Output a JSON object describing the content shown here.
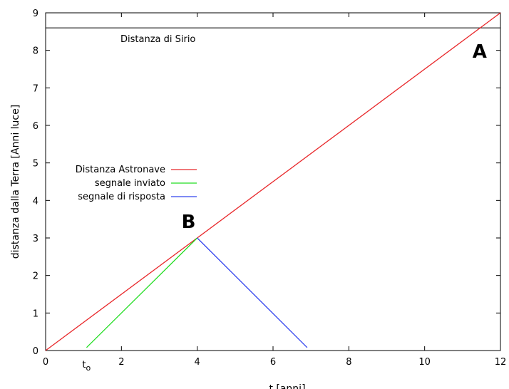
{
  "chart_data": {
    "type": "line",
    "xlabel": "t [anni]",
    "ylabel": "distanza dalla Terra [Anni luce]",
    "xlim": [
      0,
      12
    ],
    "ylim": [
      0,
      9
    ],
    "xticks": [
      0,
      2,
      4,
      6,
      8,
      10,
      12
    ],
    "yticks": [
      0,
      1,
      2,
      3,
      4,
      5,
      6,
      7,
      8,
      9
    ],
    "grid": false,
    "legend_position": "center-left",
    "series": [
      {
        "name": "Distanza Astronave",
        "color": "#e8272a",
        "x": [
          0,
          12
        ],
        "y": [
          0,
          9
        ]
      },
      {
        "name": "segnale inviato",
        "color": "#22dd22",
        "x": [
          1.08,
          4.0
        ],
        "y": [
          0.08,
          3.0
        ]
      },
      {
        "name": "segnale di risposta",
        "color": "#3344ee",
        "x": [
          4.0,
          6.9
        ],
        "y": [
          3.0,
          0.08
        ]
      }
    ],
    "reference_line": {
      "label": "Distanza di Sirio",
      "y": 8.6,
      "color": "#000000"
    },
    "annotations": {
      "t0_main": "t",
      "t0_sub": "o",
      "point_a": {
        "text": "A",
        "x": 11.45,
        "y": 8.6
      },
      "point_b": {
        "text": "B",
        "x": 4.0,
        "y": 3.0
      }
    }
  }
}
